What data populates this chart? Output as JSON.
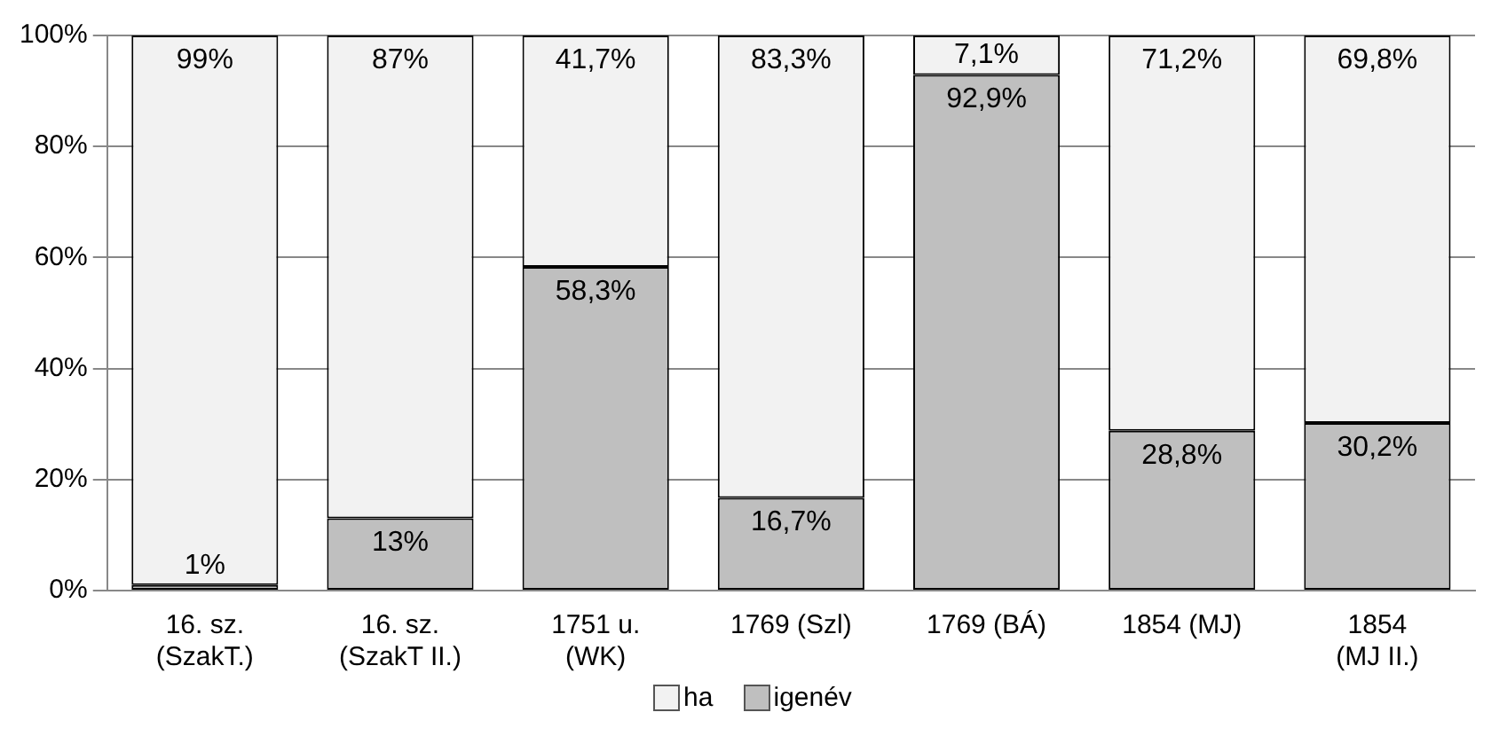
{
  "chart_data": {
    "type": "bar",
    "stacked": true,
    "categories": [
      "16. sz.\n(SzakT.)",
      "16. sz.\n(SzakT II.)",
      "1751 u.\n(WK)",
      "1769 (Szl)",
      "1769 (BÁ)",
      "1854 (MJ)",
      "1854\n(MJ II.)"
    ],
    "series": [
      {
        "name": "igenév",
        "color": "#bfbfbf",
        "values": [
          1,
          13,
          58.3,
          16.7,
          92.9,
          28.8,
          30.2
        ],
        "value_labels": [
          "1%",
          "13%",
          "58,3%",
          "16,7%",
          "92,9%",
          "28,8%",
          "30,2%"
        ]
      },
      {
        "name": "ha",
        "color": "#f2f2f2",
        "values": [
          99,
          87,
          41.7,
          83.3,
          7.1,
          71.2,
          69.8
        ],
        "value_labels": [
          "99%",
          "87%",
          "41,7%",
          "83,3%",
          "7,1%",
          "71,2%",
          "69,8%"
        ]
      }
    ],
    "ylim": [
      0,
      100
    ],
    "yticks": [
      {
        "value": 0,
        "label": "0%"
      },
      {
        "value": 20,
        "label": "20%"
      },
      {
        "value": 40,
        "label": "40%"
      },
      {
        "value": 60,
        "label": "60%"
      },
      {
        "value": 80,
        "label": "80%"
      },
      {
        "value": 100,
        "label": "100%"
      }
    ],
    "grid": "y",
    "legend": "bottom"
  }
}
